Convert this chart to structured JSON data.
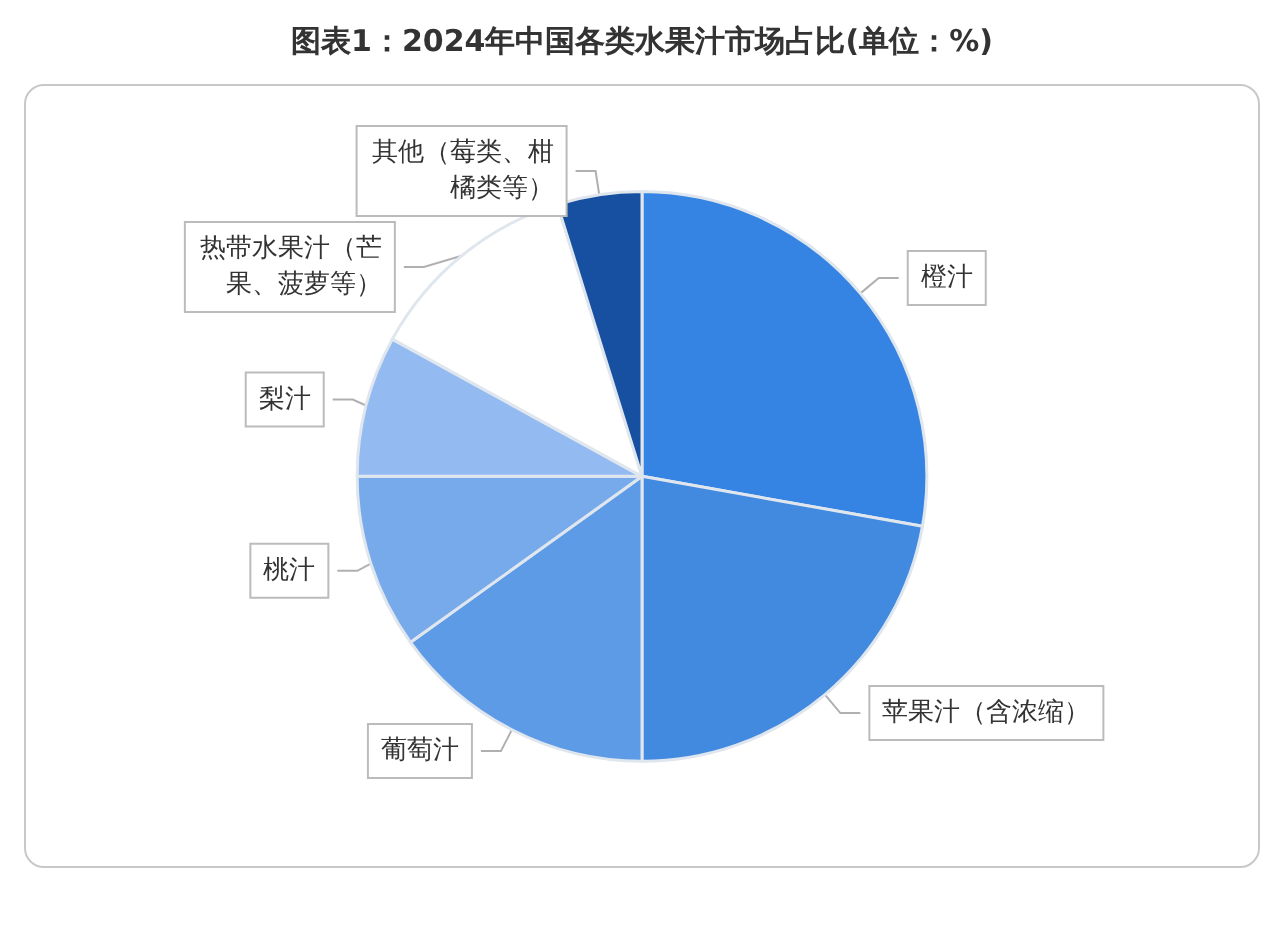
{
  "chart_data": {
    "type": "pie",
    "title": "图表1：2024年中国各类水果汁市场占比(单位：%)",
    "categories": [
      "橙汁",
      "苹果汁（含浓缩）",
      "葡萄汁",
      "桃汁",
      "梨汁",
      "热带水果汁（芒果、菠萝等）",
      "其他（莓类、柑橘类等）"
    ],
    "values": [
      27.8,
      22.2,
      15.1,
      9.9,
      8.0,
      12.2,
      4.8
    ],
    "colors": [
      "#3584e4",
      "#4289e0",
      "#5d9be6",
      "#77aaeb",
      "#93bbf2",
      "#ffffff",
      "#1750a0"
    ],
    "legend": false
  }
}
